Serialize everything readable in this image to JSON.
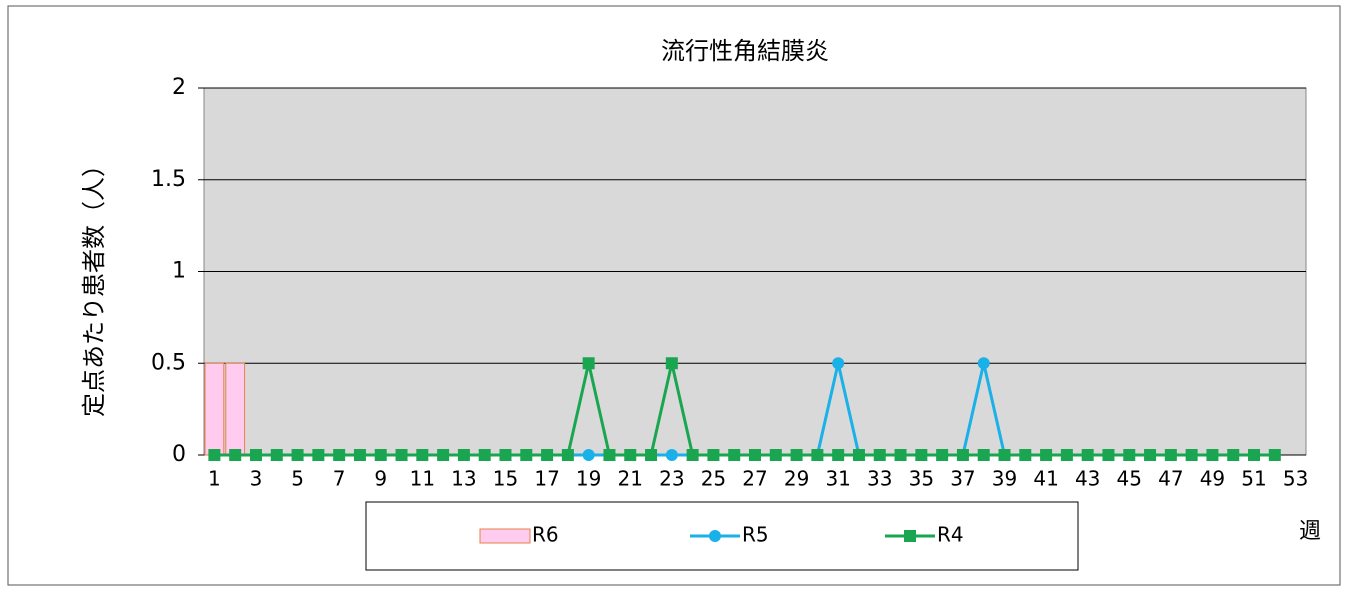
{
  "chart_data": {
    "type": "bar-line",
    "title": "流行性角結膜炎",
    "y_label": "定点あたり患者数（人）",
    "x_label": "週",
    "categories": [
      1,
      null,
      3,
      null,
      5,
      null,
      7,
      null,
      9,
      null,
      11,
      null,
      13,
      null,
      15,
      null,
      17,
      null,
      19,
      null,
      21,
      null,
      23,
      null,
      25,
      null,
      27,
      null,
      29,
      null,
      31,
      null,
      33,
      null,
      35,
      null,
      37,
      null,
      39,
      null,
      41,
      null,
      43,
      null,
      45,
      null,
      47,
      null,
      49,
      null,
      51,
      null,
      53
    ],
    "ylim": [
      0,
      2
    ],
    "yticks": [
      0,
      0.5,
      1,
      1.5,
      2
    ],
    "grid": true,
    "series": [
      {
        "name": "R6",
        "kind": "bar",
        "color": "#ffccf0",
        "edge": "#e8804a",
        "values": [
          0.5,
          0.5,
          null,
          null,
          null,
          null,
          null,
          null,
          null,
          null,
          null,
          null,
          null,
          null,
          null,
          null,
          null,
          null,
          null,
          null,
          null,
          null,
          null,
          null,
          null,
          null,
          null,
          null,
          null,
          null,
          null,
          null,
          null,
          null,
          null,
          null,
          null,
          null,
          null,
          null,
          null,
          null,
          null,
          null,
          null,
          null,
          null,
          null,
          null,
          null,
          null,
          null,
          null
        ]
      },
      {
        "name": "R5",
        "kind": "line",
        "marker": "circle",
        "color": "#1ab0e8",
        "values": [
          0,
          0,
          0,
          0,
          0,
          0,
          0,
          0,
          0,
          0,
          0,
          0,
          0,
          0,
          0,
          0,
          0,
          0,
          0,
          0,
          0,
          0,
          0,
          0,
          0,
          0,
          0,
          0,
          0,
          0,
          0.5,
          0,
          0,
          0,
          0,
          0,
          0,
          0.5,
          0,
          0,
          0,
          0,
          0,
          0,
          0,
          0,
          0,
          0,
          0,
          0,
          0,
          0,
          null
        ]
      },
      {
        "name": "R4",
        "kind": "line",
        "marker": "square",
        "color": "#1aa650",
        "values": [
          0,
          0,
          0,
          0,
          0,
          0,
          0,
          0,
          0,
          0,
          0,
          0,
          0,
          0,
          0,
          0,
          0,
          0,
          0.5,
          0,
          0,
          0,
          0.5,
          0,
          0,
          0,
          0,
          0,
          0,
          0,
          0,
          0,
          0,
          0,
          0,
          0,
          0,
          0,
          0,
          0,
          0,
          0,
          0,
          0,
          0,
          0,
          0,
          0,
          0,
          0,
          0,
          0,
          null
        ]
      }
    ]
  }
}
